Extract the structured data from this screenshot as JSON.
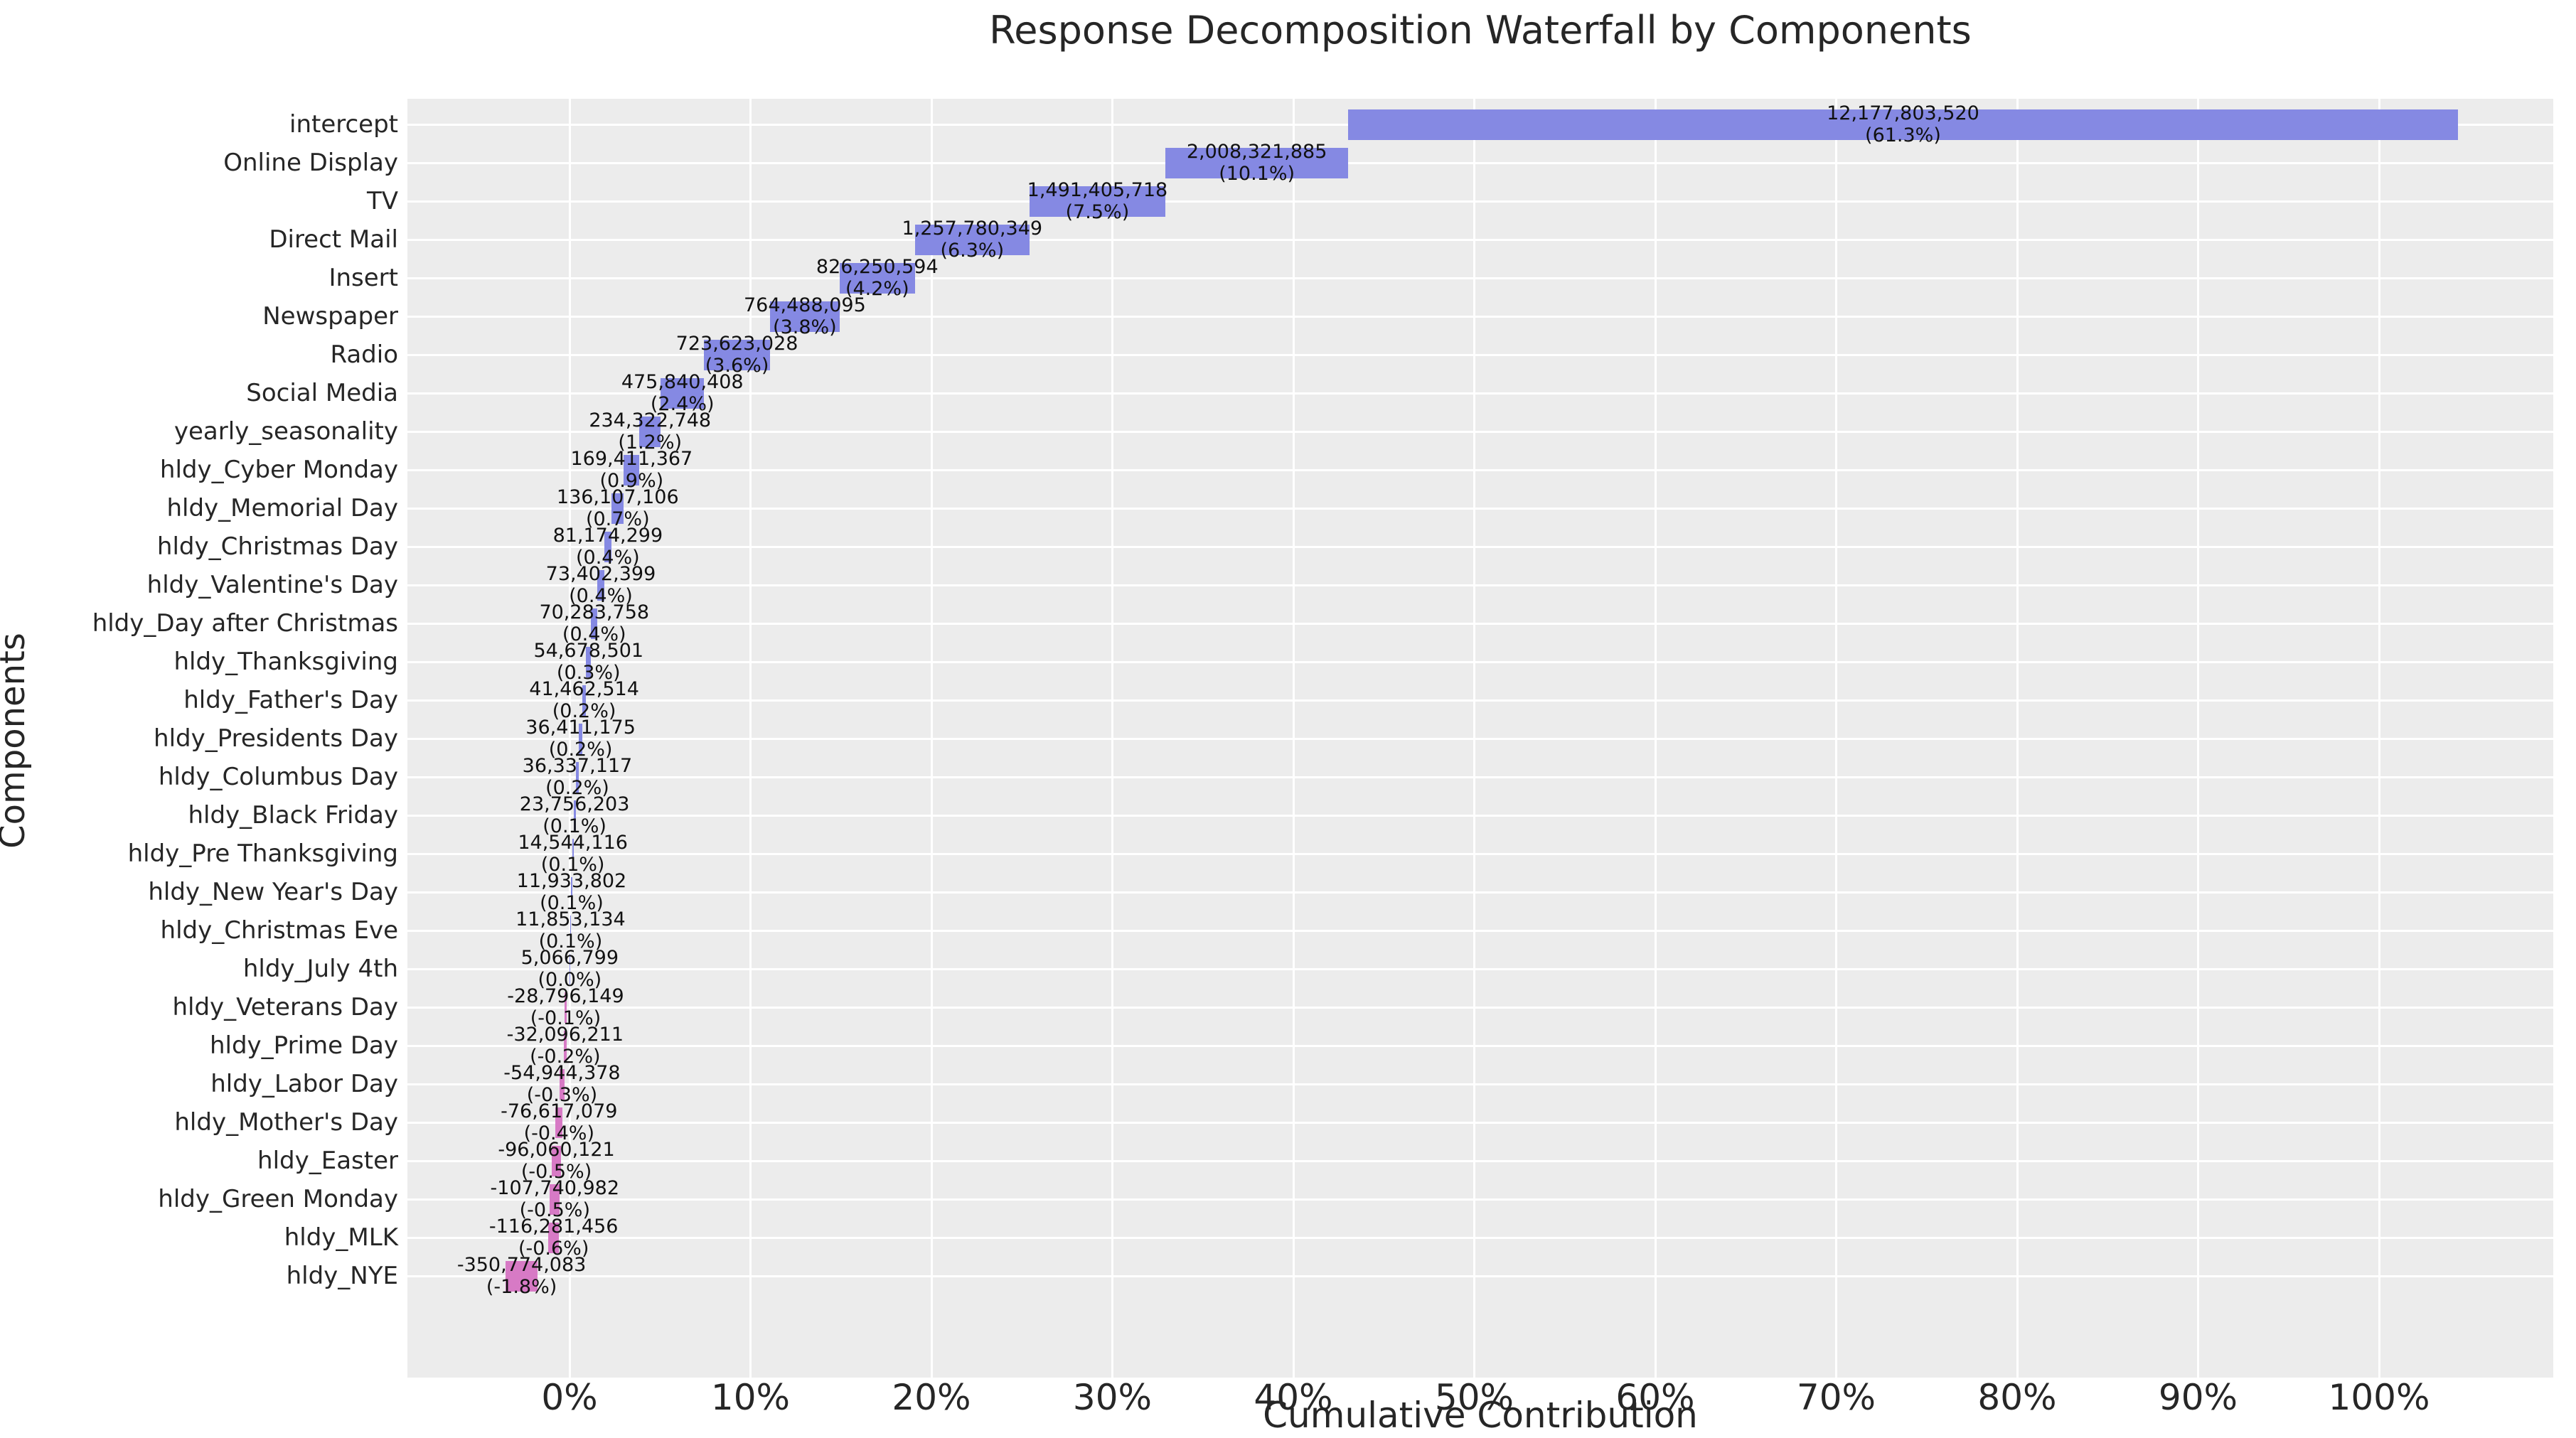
{
  "colors": {
    "positive_bar": "#8589e3",
    "negative_bar": "#d77ac5",
    "plot_background": "#ececec",
    "gridline": "#ffffff",
    "text": "#262626"
  },
  "chart_data": {
    "type": "bar",
    "subtype": "horizontal_waterfall",
    "title": "Response Decomposition Waterfall by Components",
    "xlabel": "Cumulative Contribution",
    "ylabel": "Components",
    "legend": "none",
    "grid": true,
    "xlim_pct": [
      -8.96,
      109.6
    ],
    "x_tick_labels": [
      "0%",
      "10%",
      "20%",
      "30%",
      "40%",
      "50%",
      "60%",
      "70%",
      "80%",
      "90%",
      "100%"
    ],
    "categories": [
      "intercept",
      "Online Display",
      "TV",
      "Direct Mail",
      "Insert",
      "Newspaper",
      "Radio",
      "Social Media",
      "yearly_seasonality",
      "hldy_Cyber Monday",
      "hldy_Memorial Day",
      "hldy_Christmas Day",
      "hldy_Valentine's Day",
      "hldy_Day after Christmas",
      "hldy_Thanksgiving",
      "hldy_Father's Day",
      "hldy_Presidents Day",
      "hldy_Columbus Day",
      "hldy_Black Friday",
      "hldy_Pre Thanksgiving",
      "hldy_New Year's Day",
      "hldy_Christmas Eve",
      "hldy_July 4th",
      "hldy_Veterans Day",
      "hldy_Prime Day",
      "hldy_Labor Day",
      "hldy_Mother's Day",
      "hldy_Easter",
      "hldy_Green Monday",
      "hldy_MLK",
      "hldy_NYE"
    ],
    "values": [
      12177803520,
      2008321885,
      1491405718,
      1257780349,
      826250594,
      764488095,
      723623028,
      475840408,
      234322748,
      169411367,
      136107106,
      81174299,
      73402399,
      70283758,
      54678501,
      41462514,
      36411175,
      36337117,
      23756203,
      14544116,
      11933802,
      11853134,
      5066799,
      -28796149,
      -32096211,
      -54944378,
      -76617079,
      -96060121,
      -107740982,
      -116281456,
      -350774083
    ],
    "value_labels": [
      "12,177,803,520",
      "2,008,321,885",
      "1,491,405,718",
      "1,257,780,349",
      "826,250,594",
      "764,488,095",
      "723,623,028",
      "475,840,408",
      "234,322,748",
      "169,411,367",
      "136,107,106",
      "81,174,299",
      "73,402,399",
      "70,283,758",
      "54,678,501",
      "41,462,514",
      "36,411,175",
      "36,337,117",
      "23,756,203",
      "14,544,116",
      "11,933,802",
      "11,853,134",
      "5,066,799",
      "-28,796,149",
      "-32,096,211",
      "-54,944,378",
      "-76,617,079",
      "-96,060,121",
      "-107,740,982",
      "-116,281,456",
      "-350,774,083"
    ],
    "pct_labels": [
      "(61.3%)",
      "(10.1%)",
      "(7.5%)",
      "(6.3%)",
      "(4.2%)",
      "(3.8%)",
      "(3.6%)",
      "(2.4%)",
      "(1.2%)",
      "(0.9%)",
      "(0.7%)",
      "(0.4%)",
      "(0.4%)",
      "(0.4%)",
      "(0.3%)",
      "(0.2%)",
      "(0.2%)",
      "(0.2%)",
      "(0.1%)",
      "(0.1%)",
      "(0.1%)",
      "(0.1%)",
      "(0.0%)",
      "(-0.1%)",
      "(-0.2%)",
      "(-0.3%)",
      "(-0.4%)",
      "(-0.5%)",
      "(-0.5%)",
      "(-0.6%)",
      "(-1.8%)"
    ]
  }
}
